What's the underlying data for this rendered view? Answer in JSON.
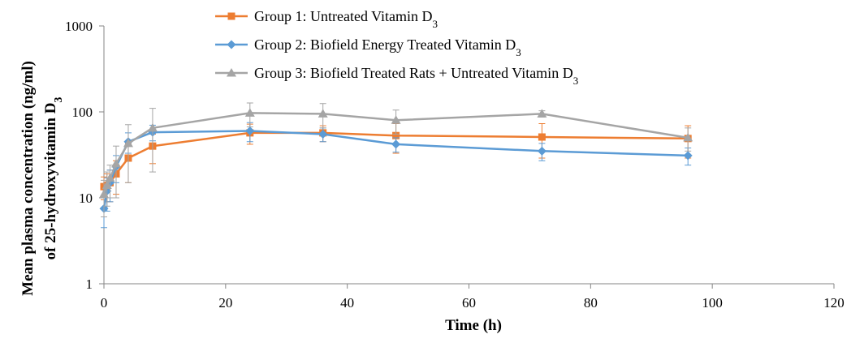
{
  "chart_data": {
    "type": "line",
    "title": "",
    "xlabel": "Time (h)",
    "ylabel_line1": "Mean plasma concentration (ng/ml)",
    "ylabel_line2": "of 25-hydroxyvitamin D",
    "ylabel_subscript": "3",
    "xlim": [
      0,
      120
    ],
    "ylim": [
      1,
      1000
    ],
    "y_scale": "log",
    "x_ticks": [
      0,
      20,
      40,
      60,
      80,
      100,
      120
    ],
    "x_tick_labels": [
      "0",
      "20",
      "40",
      "60",
      "80",
      "100",
      "120"
    ],
    "y_ticks": [
      1,
      10,
      100,
      1000
    ],
    "y_tick_labels": [
      "1",
      "10",
      "100",
      "1000"
    ],
    "grid": false,
    "legend_position": "top-center",
    "series": [
      {
        "name": "Group 1: Untreated Vitamin D",
        "name_subscript": "3",
        "color": "#ED7D31",
        "marker": "square",
        "x": [
          0,
          0.5,
          1,
          2,
          4,
          8,
          24,
          36,
          48,
          72,
          96
        ],
        "y": [
          13.5,
          14,
          15,
          19,
          29,
          40,
          57,
          57,
          53,
          51,
          49
        ],
        "err": [
          4,
          5,
          6,
          8,
          14,
          15,
          15,
          12,
          20,
          22,
          20
        ]
      },
      {
        "name": "Group 2: Biofield Energy Treated Vitamin D",
        "name_subscript": "3",
        "color": "#5B9BD5",
        "marker": "diamond",
        "x": [
          0,
          0.5,
          1,
          2,
          4,
          8,
          24,
          36,
          48,
          72,
          96
        ],
        "y": [
          7.5,
          12,
          15,
          23,
          45,
          58,
          60,
          55,
          42,
          35,
          31
        ],
        "err": [
          3,
          5,
          6,
          8,
          12,
          12,
          15,
          10,
          8,
          8,
          7
        ]
      },
      {
        "name": "Group 3: Biofield Treated Rats + Untreated Vitamin D",
        "name_subscript": "3",
        "color": "#A5A5A5",
        "marker": "triangle",
        "x": [
          0,
          0.5,
          1,
          2,
          4,
          8,
          24,
          36,
          48,
          72,
          96
        ],
        "y": [
          11,
          14,
          17,
          25,
          43,
          65,
          97,
          95,
          80,
          95,
          50
        ],
        "err": [
          5,
          6,
          7,
          15,
          28,
          45,
          30,
          30,
          25,
          8,
          15
        ]
      }
    ]
  }
}
